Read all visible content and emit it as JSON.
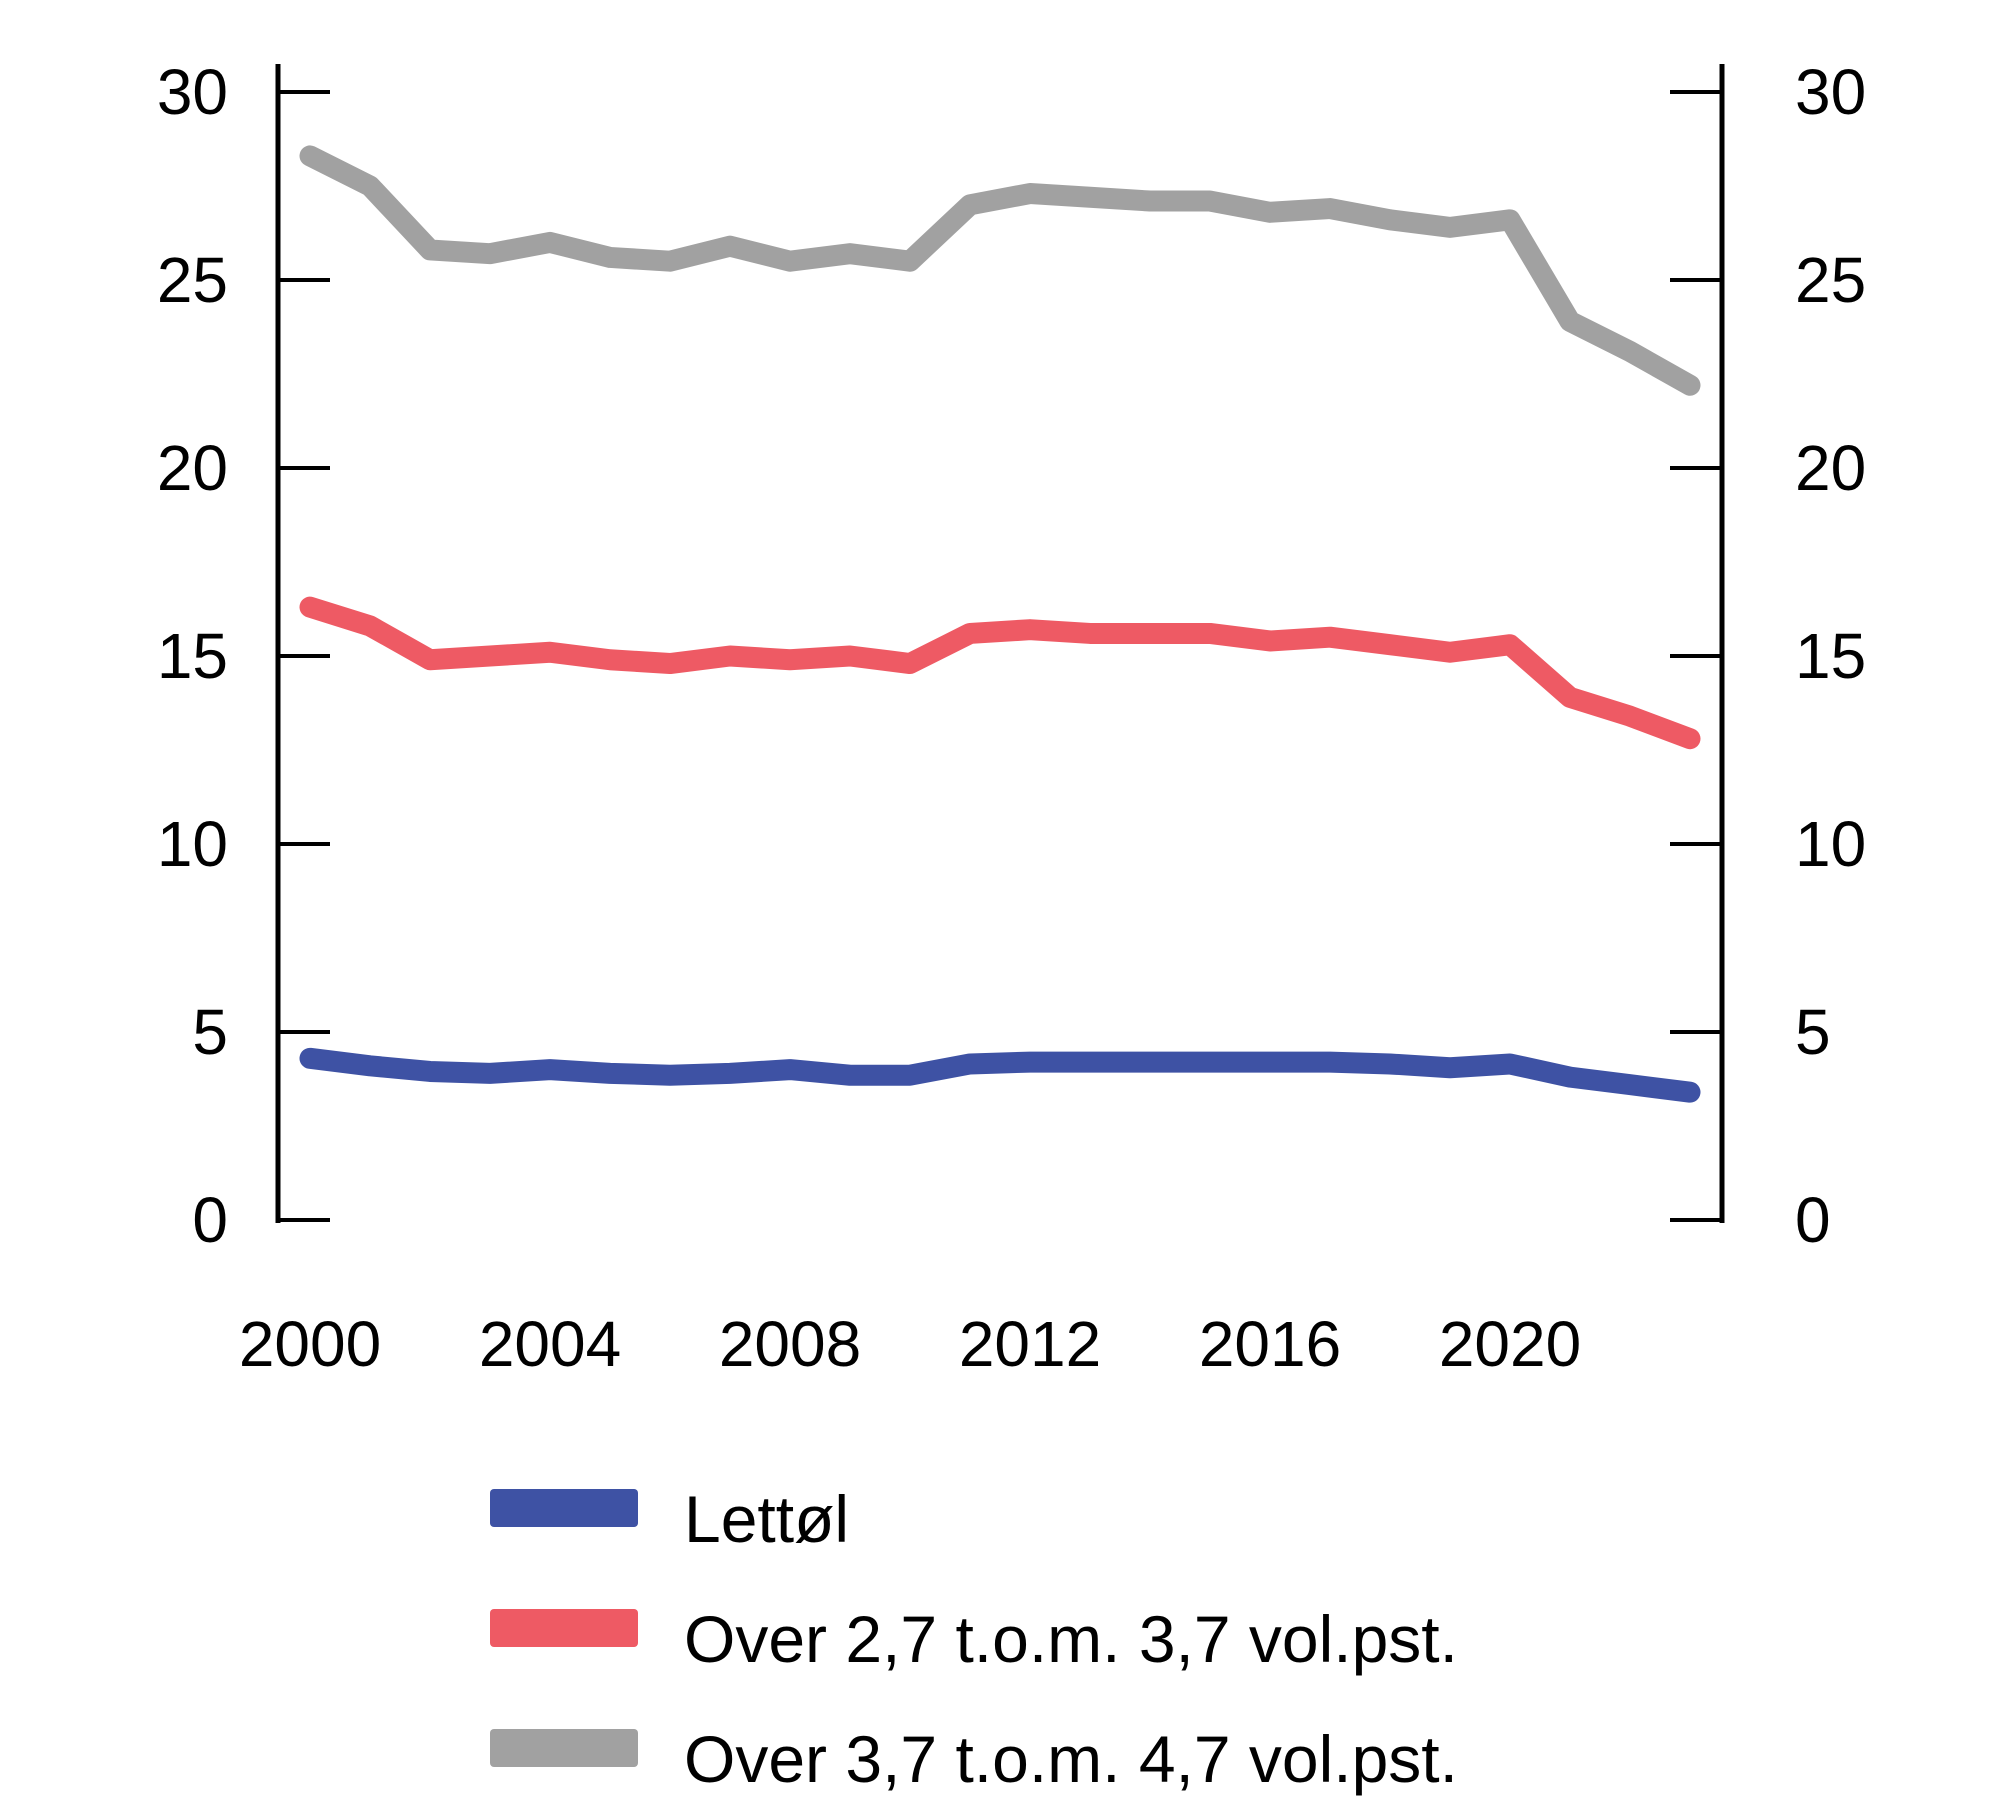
{
  "chart_data": {
    "type": "line",
    "x": [
      2000,
      2001,
      2002,
      2003,
      2004,
      2005,
      2006,
      2007,
      2008,
      2009,
      2010,
      2011,
      2012,
      2013,
      2014,
      2015,
      2016,
      2017,
      2018,
      2019,
      2020,
      2021,
      2022,
      2023
    ],
    "series": [
      {
        "name": "Lettøl",
        "color": "#3e52a4",
        "values": [
          4.3,
          4.1,
          3.95,
          3.9,
          4.0,
          3.9,
          3.85,
          3.9,
          4.0,
          3.85,
          3.85,
          4.15,
          4.2,
          4.2,
          4.2,
          4.2,
          4.2,
          4.2,
          4.15,
          4.05,
          4.15,
          3.8,
          3.6,
          3.4
        ]
      },
      {
        "name": "Over 2,7 t.o.m. 3,7 vol.pst.",
        "color": "#ee5a64",
        "values": [
          16.3,
          15.8,
          14.9,
          15.0,
          15.1,
          14.9,
          14.8,
          15.0,
          14.9,
          15.0,
          14.8,
          15.6,
          15.7,
          15.6,
          15.6,
          15.6,
          15.4,
          15.5,
          15.3,
          15.1,
          15.3,
          13.9,
          13.4,
          12.8
        ]
      },
      {
        "name": "Over 3,7 t.o.m. 4,7 vol.pst.",
        "color": "#a1a1a1",
        "values": [
          28.3,
          27.5,
          25.8,
          25.7,
          26.0,
          25.6,
          25.5,
          25.9,
          25.5,
          25.7,
          25.5,
          27.0,
          27.3,
          27.2,
          27.1,
          27.1,
          26.8,
          26.9,
          26.6,
          26.4,
          26.6,
          23.9,
          23.1,
          22.2
        ]
      }
    ],
    "title": "",
    "xlabel": "",
    "ylabel": "",
    "ylim": [
      0,
      30
    ],
    "yticks": [
      0,
      5,
      10,
      15,
      20,
      25,
      30
    ],
    "ytick_labels": [
      "0",
      "5",
      "10",
      "15",
      "20",
      "25",
      "30"
    ],
    "xticks": [
      2000,
      2004,
      2008,
      2012,
      2016,
      2020
    ],
    "xtick_labels": [
      "2000",
      "2004",
      "2008",
      "2012",
      "2016",
      "2020"
    ],
    "y_axis_sides": [
      "left",
      "right"
    ],
    "grid": false,
    "legend_position": "bottom-left",
    "axis_color": "#000000",
    "background_color": "#ffffff"
  }
}
